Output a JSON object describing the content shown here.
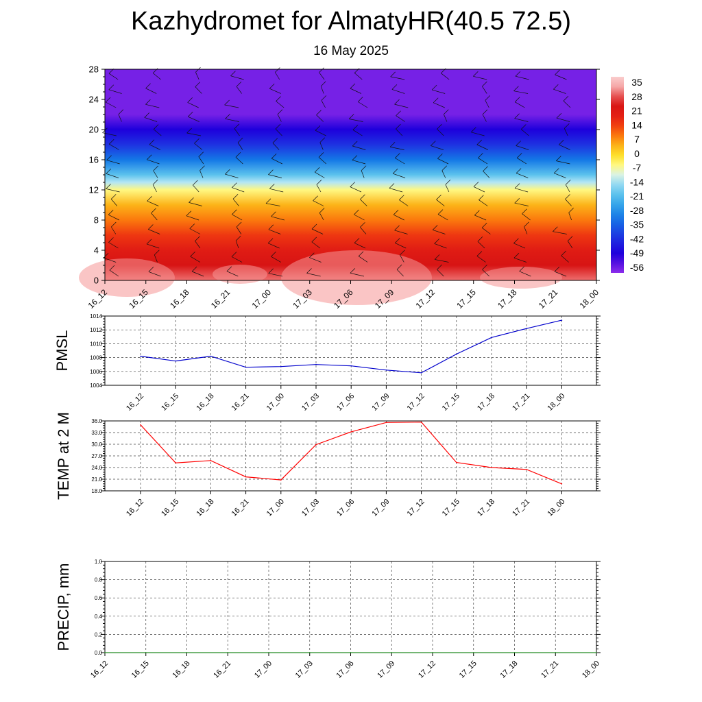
{
  "title": "Kazhydromet for AlmatyHR(40.5 72.5)",
  "subtitle": "16 May 2025",
  "chart_data": [
    {
      "type": "heatmap",
      "title": "",
      "x_categories": [
        "16_12",
        "16_15",
        "16_18",
        "16_21",
        "17_00",
        "17_03",
        "17_06",
        "17_09",
        "17_12",
        "17_15",
        "17_18",
        "17_21",
        "18_00"
      ],
      "y_ticks": [
        0,
        4,
        8,
        12,
        16,
        20,
        24,
        28
      ],
      "ylim": [
        0,
        28
      ],
      "colorbar_labels": [
        "35",
        "28",
        "21",
        "14",
        "7",
        "0",
        "-7",
        "-14",
        "-21",
        "-28",
        "-35",
        "-42",
        "-49",
        "-56"
      ],
      "temperature_profile": {
        "heights": [
          0,
          2,
          4,
          6,
          8,
          10,
          12,
          13,
          14,
          16,
          18,
          20,
          22,
          28
        ],
        "values": [
          30,
          24,
          20,
          14,
          8,
          3,
          -7,
          -14,
          -22,
          -34,
          -44,
          -52,
          -60,
          -60
        ]
      },
      "overlay": "wind barbs",
      "colors": {
        "top": "#8A2BE2",
        "mid": "#FFFF66",
        "bottom": "#F08080"
      }
    },
    {
      "type": "line",
      "ylabel": "PMSL",
      "categories": [
        "16_12",
        "16_15",
        "16_18",
        "16_21",
        "17_00",
        "17_03",
        "17_06",
        "17_09",
        "17_12",
        "17_15",
        "17_18",
        "17_21",
        "18_00"
      ],
      "series": [
        {
          "values": [
            1008.2,
            1007.5,
            1008.2,
            1006.6,
            1006.7,
            1007.0,
            1006.8,
            1006.2,
            1005.8,
            1008.5,
            1010.9,
            1012.2,
            1013.4
          ]
        }
      ],
      "y_tick_labels": [
        "1004",
        "1006",
        "1008",
        "1010",
        "1012",
        "1014"
      ],
      "ylim": [
        1004,
        1014
      ],
      "color": "#0000CC",
      "grid": true
    },
    {
      "type": "line",
      "ylabel": "TEMP at 2 M",
      "categories": [
        "16_12",
        "16_15",
        "16_18",
        "16_21",
        "17_00",
        "17_03",
        "17_06",
        "17_09",
        "17_12",
        "17_15",
        "17_18",
        "17_21",
        "18_00"
      ],
      "series": [
        {
          "values": [
            35.0,
            25.2,
            25.8,
            21.6,
            20.8,
            29.9,
            33.2,
            35.6,
            35.7,
            25.3,
            24.0,
            23.5,
            19.8
          ]
        }
      ],
      "y_tick_labels": [
        "18.0",
        "21.0",
        "24.0",
        "27.0",
        "30.0",
        "33.0",
        "36.0"
      ],
      "ylim": [
        18,
        36
      ],
      "color": "#FF0000",
      "grid": true
    },
    {
      "type": "line",
      "ylabel": "PRECIP, mm",
      "categories": [
        "16_12",
        "16_15",
        "16_18",
        "16_21",
        "17_00",
        "17_03",
        "17_06",
        "17_09",
        "17_12",
        "17_15",
        "17_18",
        "17_21",
        "18_00"
      ],
      "series": [
        {
          "values": [
            0,
            0,
            0,
            0,
            0,
            0,
            0,
            0,
            0,
            0,
            0,
            0,
            0
          ]
        }
      ],
      "y_tick_labels": [
        "0.0",
        "0.2",
        "0.4",
        "0.6",
        "0.8",
        "1.0"
      ],
      "ylim": [
        0,
        1
      ],
      "color": "#228B22",
      "grid": true
    }
  ]
}
